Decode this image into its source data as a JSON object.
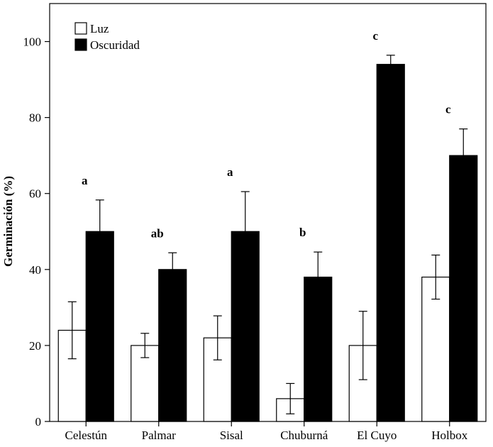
{
  "chart_data": {
    "type": "bar",
    "ylabel": "Germinación (%)",
    "xlabel": "",
    "ylim": [
      0,
      110
    ],
    "yticks": [
      0,
      20,
      40,
      60,
      80,
      100
    ],
    "grid": false,
    "legend_position": "top-left",
    "categories": [
      "Celestún",
      "Palmar",
      "Sisal",
      "Chuburná",
      "El Cuyo",
      "Holbox"
    ],
    "series": [
      {
        "name": "Luz",
        "color": "#ffffff",
        "values": [
          24,
          20,
          22,
          6,
          20,
          38
        ],
        "errors": [
          7.5,
          3.2,
          5.8,
          4.0,
          9.0,
          5.8
        ]
      },
      {
        "name": "Oscuridad",
        "color": "#000000",
        "values": [
          50,
          40,
          50,
          38,
          94,
          70
        ],
        "errors": [
          8.3,
          4.4,
          10.5,
          6.6,
          2.4,
          7.0
        ]
      }
    ],
    "significance_labels": [
      "a",
      "ab",
      "a",
      "b",
      "c",
      "c"
    ]
  }
}
